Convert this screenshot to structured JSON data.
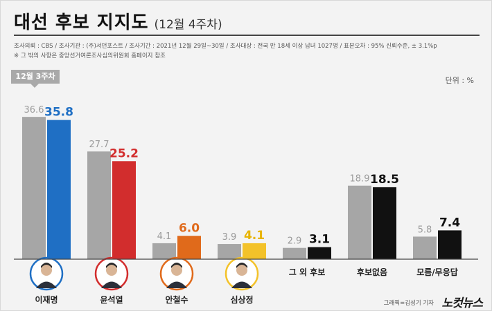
{
  "title": "대선 후보 지지도",
  "subtitle": "(12월 4주차)",
  "meta_line1": "조사의뢰 : CBS / 조사기관 : (주)서던포스트 / 조사기간 : 2021년 12월 29일~30일 / 조사대상 : 전국 만 18세 이상 남녀 1027명 / 표본오차 : 95% 신뢰수준, ± 3.1%p",
  "meta_line2": "※ 그 밖의 사항은 중앙선거여론조사심의위원회 홈페이지 참조",
  "unit_label": "단위 : %",
  "prev_week_badge": "12월 3주차",
  "credit": "그래픽=김성기 기자",
  "brand": "노컷뉴스",
  "colors": {
    "prev": "#a6a6a6",
    "lee": "#1f6fc4",
    "yoon": "#d22d2d",
    "ahn": "#e06a1b",
    "sim": "#f3c22a",
    "other": "#111111",
    "avatar_lee": "#1f6fc4",
    "avatar_yoon": "#d22d2d",
    "avatar_ahn": "#e06a1b",
    "avatar_sim": "#f3c22a"
  },
  "icons": {
    "lee": "candidate-photo",
    "yoon": "candidate-photo",
    "ahn": "candidate-photo",
    "sim": "candidate-photo"
  },
  "chart_data": {
    "type": "bar",
    "categories": [
      "이재명",
      "윤석열",
      "안철수",
      "심상정",
      "그 외 후보",
      "후보없음",
      "모름/무응답"
    ],
    "series": [
      {
        "name": "12월 3주차",
        "values": [
          36.6,
          27.7,
          4.1,
          3.9,
          2.9,
          18.9,
          5.8
        ]
      },
      {
        "values": [
          35.8,
          25.2,
          6.0,
          4.1,
          3.1,
          18.5,
          7.4
        ]
      }
    ],
    "value_labels_prev": [
      "36.6",
      "27.7",
      "4.1",
      "3.9",
      "2.9",
      "18.9",
      "5.8"
    ],
    "value_labels_curr": [
      "35.8",
      "25.2",
      "6.0",
      "4.1",
      "3.1",
      "18.5",
      "7.4"
    ],
    "current_colors": [
      "#1f6fc4",
      "#d22d2d",
      "#e06a1b",
      "#f3c22a",
      "#111111",
      "#111111",
      "#111111"
    ],
    "grid": false,
    "ylim": [
      0,
      40
    ]
  }
}
